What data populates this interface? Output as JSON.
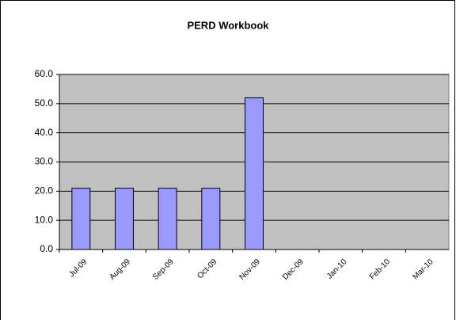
{
  "chart_data": {
    "type": "bar",
    "title": "PERD Workbook",
    "categories": [
      "Jul-09",
      "Aug-09",
      "Sep-09",
      "Oct-09",
      "Nov-09",
      "Dec-09",
      "Jan-10",
      "Feb-10",
      "Mar-10"
    ],
    "values": [
      21,
      21,
      21,
      21,
      52,
      null,
      null,
      null,
      null
    ],
    "color": "#9999ff",
    "plot_background": "#c0c0c0",
    "ylim": [
      0,
      60
    ],
    "yticks": [
      {
        "value": 0,
        "label": "0.0"
      },
      {
        "value": 10,
        "label": "10.0"
      },
      {
        "value": 20,
        "label": "20.0"
      },
      {
        "value": 30,
        "label": "30.0"
      },
      {
        "value": 40,
        "label": "40.0"
      },
      {
        "value": 50,
        "label": "50.0"
      },
      {
        "value": 60,
        "label": "60.0"
      }
    ],
    "grid": true
  }
}
